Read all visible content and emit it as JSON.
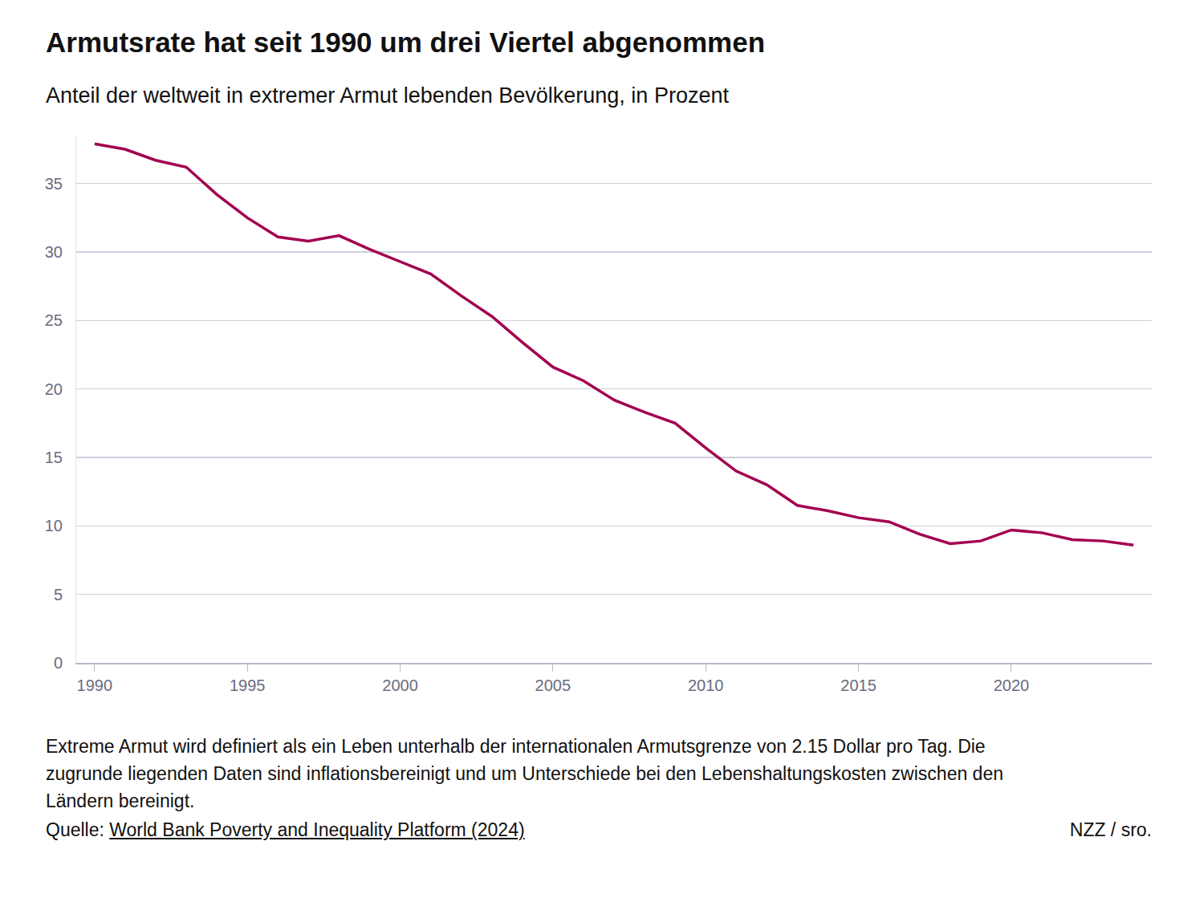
{
  "chart_data": {
    "type": "line",
    "title": "Armutsrate hat seit 1990 um drei Viertel abgenommen",
    "subtitle": "Anteil der weltweit in extremer Armut lebenden Bevölkerung, in Prozent",
    "note": "Extreme Armut wird definiert als ein Leben unterhalb der internationalen Armutsgrenze von 2.15 Dollar pro Tag. Die zugrunde liegenden Daten sind inflationsbereinigt und um Unterschiede bei den Lebenshaltungskosten zwischen den Ländern bereinigt.",
    "source_label": "Quelle:",
    "source": "World Bank Poverty and Inequality Platform (2024)",
    "credit": "NZZ / sro.",
    "x": [
      1990,
      1991,
      1992,
      1993,
      1994,
      1995,
      1996,
      1997,
      1998,
      1999,
      2000,
      2001,
      2002,
      2003,
      2004,
      2005,
      2006,
      2007,
      2008,
      2009,
      2010,
      2011,
      2012,
      2013,
      2014,
      2015,
      2016,
      2017,
      2018,
      2019,
      2020,
      2021,
      2022,
      2023,
      2024
    ],
    "values": [
      37.9,
      37.5,
      36.7,
      36.2,
      34.2,
      32.5,
      31.1,
      30.8,
      31.2,
      30.2,
      29.3,
      28.4,
      26.8,
      25.3,
      23.4,
      21.6,
      20.6,
      19.2,
      18.3,
      17.5,
      15.7,
      14.0,
      13.0,
      11.5,
      11.1,
      10.6,
      10.3,
      9.4,
      8.7,
      8.9,
      9.7,
      9.5,
      9.0,
      8.9,
      8.6
    ],
    "color": "#a3004f",
    "xlim": [
      1989.4,
      2024.6
    ],
    "xticks": [
      1990,
      1995,
      2000,
      2005,
      2010,
      2015,
      2020
    ],
    "ylim": [
      0,
      38.5
    ],
    "yticks": [
      0,
      5,
      10,
      15,
      20,
      25,
      30,
      35
    ],
    "grid": true
  }
}
